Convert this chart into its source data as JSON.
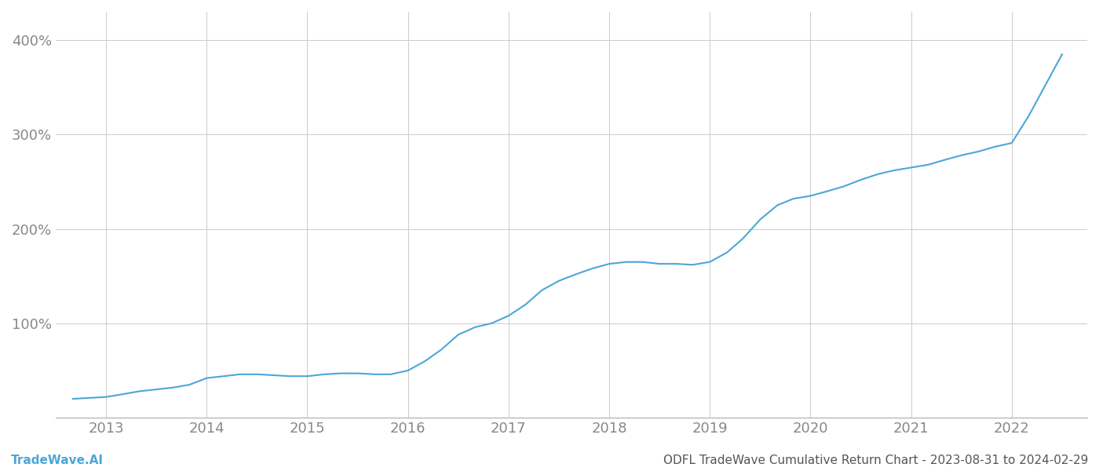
{
  "title": "ODFL TradeWave Cumulative Return Chart - 2023-08-31 to 2024-02-29",
  "footer_left": "TradeWave.AI",
  "line_color": "#4DA6D8",
  "background_color": "#ffffff",
  "grid_color": "#cccccc",
  "x_years": [
    2013,
    2014,
    2015,
    2016,
    2017,
    2018,
    2019,
    2020,
    2021,
    2022
  ],
  "x_values": [
    2012.67,
    2013.0,
    2013.17,
    2013.33,
    2013.5,
    2013.67,
    2013.83,
    2014.0,
    2014.17,
    2014.33,
    2014.5,
    2014.67,
    2014.83,
    2015.0,
    2015.17,
    2015.33,
    2015.5,
    2015.67,
    2015.83,
    2016.0,
    2016.17,
    2016.33,
    2016.5,
    2016.67,
    2016.83,
    2017.0,
    2017.17,
    2017.33,
    2017.5,
    2017.67,
    2017.83,
    2018.0,
    2018.17,
    2018.33,
    2018.5,
    2018.67,
    2018.83,
    2019.0,
    2019.17,
    2019.33,
    2019.5,
    2019.67,
    2019.83,
    2020.0,
    2020.17,
    2020.33,
    2020.5,
    2020.67,
    2020.83,
    2021.0,
    2021.17,
    2021.33,
    2021.5,
    2021.67,
    2021.83,
    2022.0,
    2022.17,
    2022.5
  ],
  "y_values": [
    20,
    22,
    25,
    28,
    30,
    32,
    35,
    42,
    44,
    46,
    46,
    45,
    44,
    44,
    46,
    47,
    47,
    46,
    46,
    50,
    60,
    72,
    88,
    96,
    100,
    108,
    120,
    135,
    145,
    152,
    158,
    163,
    165,
    165,
    163,
    163,
    162,
    165,
    175,
    190,
    210,
    225,
    232,
    235,
    240,
    245,
    252,
    258,
    262,
    265,
    268,
    273,
    278,
    282,
    287,
    291,
    320,
    385
  ],
  "ylim": [
    0,
    430
  ],
  "yticks": [
    100,
    200,
    300,
    400
  ],
  "xlim": [
    2012.5,
    2022.75
  ],
  "ylabel_color": "#888888",
  "xlabel_color": "#888888",
  "line_width": 1.5,
  "title_fontsize": 11,
  "tick_fontsize": 13,
  "footer_fontsize": 11,
  "footer_color": "#4DA6D8",
  "title_color": "#555555"
}
